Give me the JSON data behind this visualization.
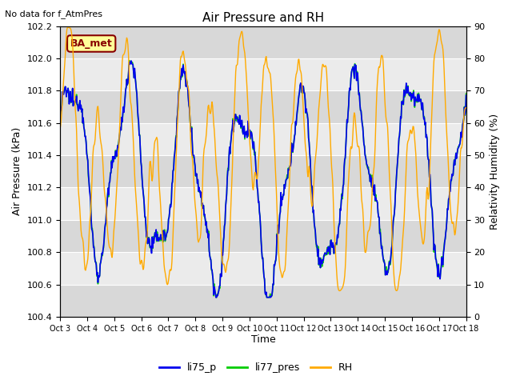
{
  "title": "Air Pressure and RH",
  "subtitle": "No data for f_AtmPres",
  "xlabel": "Time",
  "ylabel_left": "Air Pressure (kPa)",
  "ylabel_right": "Relativity Humidity (%)",
  "ylim_left": [
    100.4,
    102.2
  ],
  "ylim_right": [
    0,
    90
  ],
  "yticks_left": [
    100.4,
    100.6,
    100.8,
    101.0,
    101.2,
    101.4,
    101.6,
    101.8,
    102.0,
    102.2
  ],
  "yticks_right": [
    0,
    10,
    20,
    30,
    40,
    50,
    60,
    70,
    80,
    90
  ],
  "xtick_labels": [
    "Oct 3",
    "Oct 4",
    "Oct 5",
    "Oct 6",
    "Oct 7",
    "Oct 8",
    "Oct 9",
    "Oct 10",
    "Oct 11",
    "Oct 12",
    "Oct 13",
    "Oct 14",
    "Oct 15",
    "Oct 16",
    "Oct 17",
    "Oct 18"
  ],
  "color_li75": "#0000ee",
  "color_li77": "#00cc00",
  "color_rh": "#ffaa00",
  "legend_label_li75": "li75_p",
  "legend_label_li77": "li77_pres",
  "legend_label_rh": "RH",
  "ba_met_color": "#880000",
  "ba_met_bg": "#ffff99",
  "background_color": "#ffffff",
  "plot_bg_color": "#e0e0e0",
  "band_light": "#ebebeb",
  "band_dark": "#d8d8d8",
  "linewidth_pressure": 1.2,
  "linewidth_rh": 1.0,
  "num_points": 720
}
